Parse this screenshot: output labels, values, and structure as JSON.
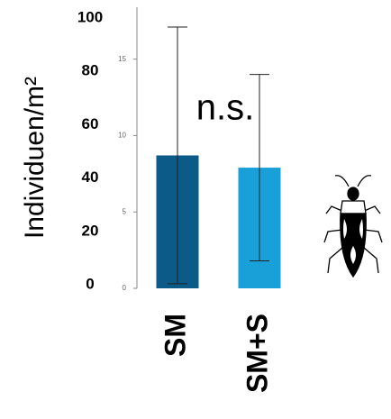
{
  "chart_data": {
    "type": "bar",
    "ylabel": "Individuen/m²",
    "annotation": "n.s.",
    "categories": [
      "SM",
      "SM+S"
    ],
    "values": [
      8.7,
      7.9
    ],
    "errors": [
      8.4,
      6.1
    ],
    "colors": [
      "#0b5a88",
      "#1aa0d8"
    ],
    "ylim": [
      0,
      18.4
    ],
    "yticks": [
      0,
      5,
      10,
      15
    ],
    "y2lim": [
      0,
      100
    ],
    "y2ticks": [
      0,
      20,
      40,
      60,
      80,
      100
    ]
  }
}
